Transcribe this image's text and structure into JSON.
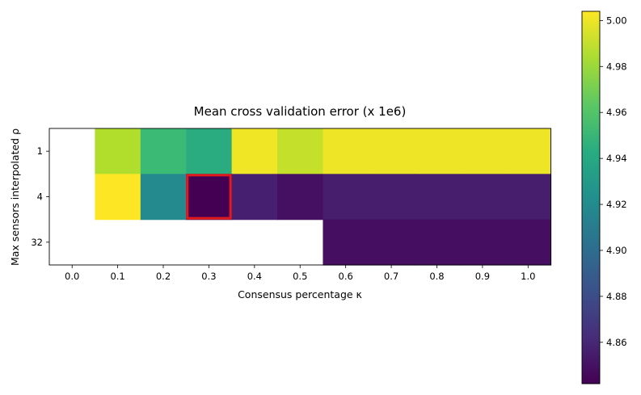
{
  "chart_data": {
    "type": "heatmap",
    "title": "Mean cross validation error (x 1e6)",
    "xlabel": "Consensus percentage κ",
    "ylabel": "Max sensors interpolated ρ",
    "x_categories": [
      "0.0",
      "0.1",
      "0.2",
      "0.3",
      "0.4",
      "0.5",
      "0.6",
      "0.7",
      "0.8",
      "0.9",
      "1.0"
    ],
    "y_categories": [
      "1",
      "4",
      "32"
    ],
    "values": [
      [
        null,
        4.985,
        4.952,
        4.942,
        5.001,
        4.99,
        5.0,
        5.0,
        5.0,
        5.0,
        5.0
      ],
      [
        null,
        5.004,
        4.919,
        4.842,
        4.856,
        4.849,
        4.855,
        4.855,
        4.855,
        4.855,
        4.855
      ],
      [
        null,
        null,
        null,
        null,
        null,
        null,
        4.848,
        4.848,
        4.848,
        4.848,
        4.848
      ]
    ],
    "highlight": {
      "row": "4",
      "column": "0.3",
      "color": "#e31a1c"
    },
    "colorbar": {
      "min": 4.842,
      "max": 5.004,
      "colormap": "viridis",
      "ticks": [
        "4.86",
        "4.88",
        "4.90",
        "4.92",
        "4.94",
        "4.96",
        "4.98",
        "5.00"
      ]
    }
  }
}
